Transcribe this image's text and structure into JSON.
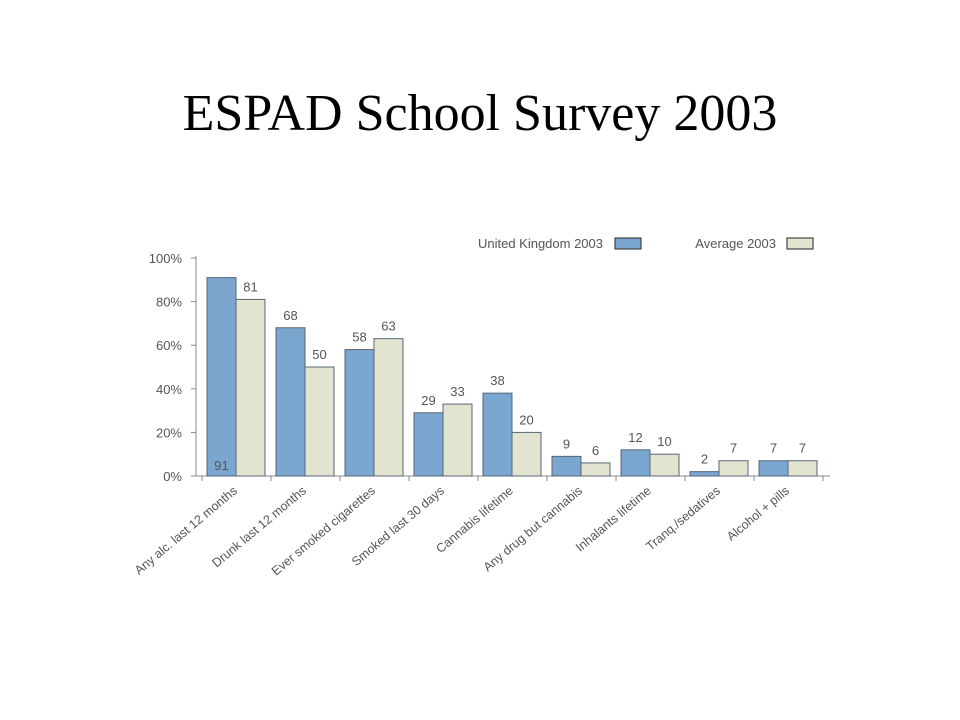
{
  "slide": {
    "title": "ESPAD School Survey 2003"
  },
  "chart_data": {
    "type": "bar",
    "categories": [
      "Any alc. last 12 months",
      "Drunk last 12 months",
      "Ever smoked cigarettes",
      "Smoked last 30 days",
      "Cannabis lifetime",
      "Any drug but cannabis",
      "Inhalants lifetime",
      "Tranq./sedatives",
      "Alcohol + pills"
    ],
    "series": [
      {
        "name": "United Kingdom 2003",
        "color": "#7aa6cf",
        "values": [
          91,
          68,
          58,
          29,
          38,
          9,
          12,
          2,
          7
        ]
      },
      {
        "name": "Average 2003",
        "color": "#e2e4cf",
        "values": [
          81,
          50,
          63,
          33,
          20,
          6,
          10,
          7,
          7
        ]
      }
    ],
    "ylim": [
      0,
      100
    ],
    "yticks": [
      "0%",
      "20%",
      "40%",
      "60%",
      "80%",
      "100%"
    ],
    "legend_position": "top-right",
    "grid": false
  }
}
